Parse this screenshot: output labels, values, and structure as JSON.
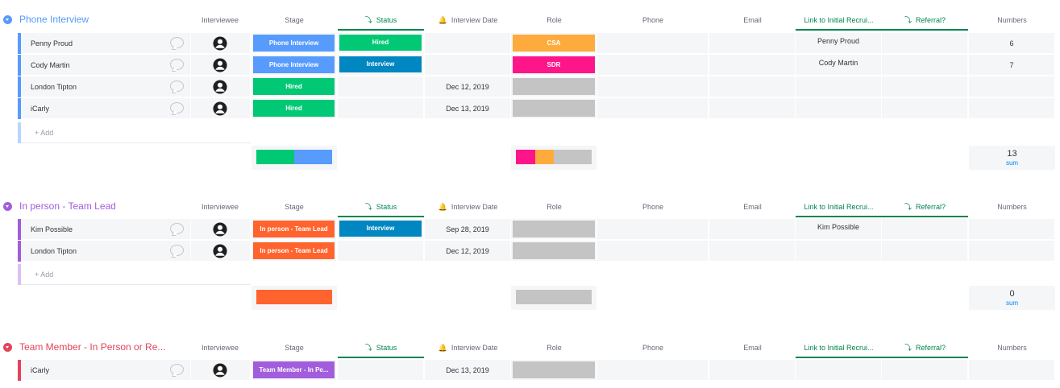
{
  "columns": {
    "interviewee": "Interviewee",
    "stage": "Stage",
    "status": "Status",
    "interview_date": "Interview Date",
    "role": "Role",
    "phone": "Phone",
    "email": "Email",
    "link": "Link to Initial Recrui...",
    "referral": "Referral?",
    "numbers": "Numbers"
  },
  "add_label": "+ Add",
  "sum_label": "sum",
  "colors": {
    "blue_group": "#579bfc",
    "purple_group": "#a25ddc",
    "pink_group": "#e2445c",
    "hired": "#00c875",
    "phone_interview": "#579bfc",
    "interview_status": "#0086c0",
    "csa": "#fdab3d",
    "sdr": "#ff158a",
    "in_person": "#ff642e",
    "team_member": "#a25ddc",
    "empty": "#c4c4c4"
  },
  "groups": [
    {
      "title": "Phone Interview",
      "rows": [
        {
          "name": "Penny Proud",
          "stage": "Phone Interview",
          "status": "Hired",
          "date": "",
          "role": "CSA",
          "link": "Penny Proud",
          "number": "6"
        },
        {
          "name": "Cody Martin",
          "stage": "Phone Interview",
          "status": "Interview",
          "date": "",
          "role": "SDR",
          "link": "Cody Martin",
          "number": "7"
        },
        {
          "name": "London Tipton",
          "stage": "Hired",
          "status": "",
          "date": "Dec 12, 2019",
          "role": "",
          "link": "",
          "number": ""
        },
        {
          "name": "iCarly",
          "stage": "Hired",
          "status": "",
          "date": "Dec 13, 2019",
          "role": "",
          "link": "",
          "number": ""
        }
      ],
      "stage_summary": [
        {
          "label": "Hired",
          "fraction": 0.5
        },
        {
          "label": "Phone Interview",
          "fraction": 0.5
        }
      ],
      "role_summary": [
        {
          "label": "SDR",
          "fraction": 0.25
        },
        {
          "label": "CSA",
          "fraction": 0.25
        },
        {
          "label": "empty",
          "fraction": 0.5
        }
      ],
      "sum": "13"
    },
    {
      "title": "In person - Team Lead",
      "rows": [
        {
          "name": "Kim Possible",
          "stage": "In person - Team Lead",
          "status": "Interview",
          "date": "Sep 28, 2019",
          "role": "",
          "link": "Kim Possible",
          "number": ""
        },
        {
          "name": "London Tipton",
          "stage": "In person - Team Lead",
          "status": "",
          "date": "Dec 12, 2019",
          "role": "",
          "link": "",
          "number": ""
        }
      ],
      "stage_summary": [
        {
          "label": "In person - Team Lead",
          "fraction": 1.0
        }
      ],
      "role_summary": [
        {
          "label": "empty",
          "fraction": 1.0
        }
      ],
      "sum": "0"
    },
    {
      "title": "Team Member - In Person or Re...",
      "rows": [
        {
          "name": "iCarly",
          "stage": "Team Member - In Pe...",
          "status": "",
          "date": "Dec 13, 2019",
          "role": "",
          "link": "",
          "number": ""
        }
      ]
    }
  ]
}
